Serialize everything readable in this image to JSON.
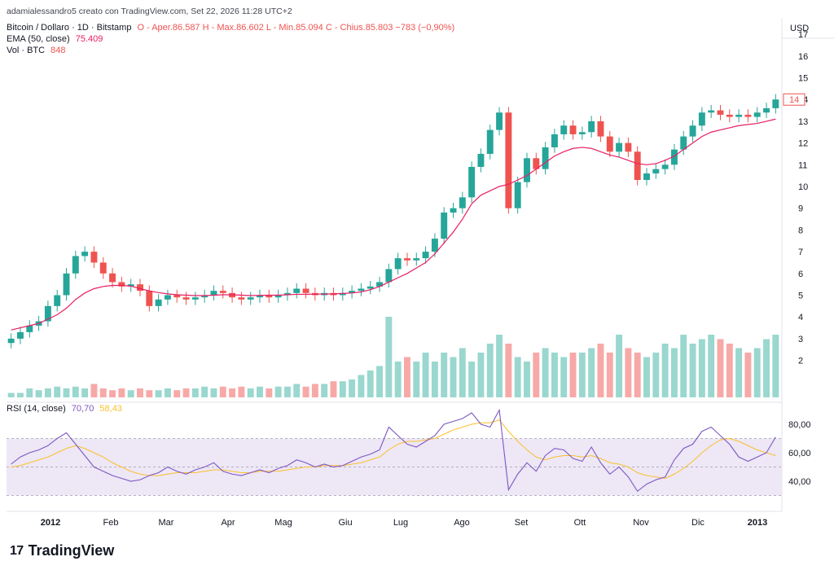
{
  "header": {
    "attribution": "adamialessandro5 creato con TradingView.com, Set 22, 2026 11:28 UTC+2",
    "symbol_line": "Bitcoin / Dollaro · 1D · Bitstamp",
    "ohlc": "O - Aper.86.587  H - Max.86.602  L - Min.85.094  C - Chius.85.803  −783 (−0,90%)",
    "ema_label": "EMA (50, close)",
    "ema_value": "75.409",
    "vol_label": "Vol · BTC",
    "vol_value": "848"
  },
  "rsi_header": {
    "label": "RSI (14, close)",
    "value": "70,70",
    "ma_value": "58,43"
  },
  "brand": {
    "name": "TradingView",
    "logo_text": "17"
  },
  "colors": {
    "up": "#26a69a",
    "down": "#ef5350",
    "ema": "#e91e63",
    "vol_up": "#9ad7cf",
    "vol_down": "#f7a9a7",
    "rsi": "#7e57c2",
    "rsi_ma": "#fbc02d",
    "rsi_band": "#ede7f6"
  },
  "chart_data": [
    {
      "type": "candlestick",
      "title": "Bitcoin / Dollaro · 1D · Bitstamp",
      "currency": "USD",
      "y_ticks": [
        2,
        3,
        4,
        5,
        6,
        7,
        8,
        9,
        10,
        11,
        12,
        13,
        14,
        15,
        16,
        17
      ],
      "last_price_label": "14",
      "x_ticks": [
        "2012",
        "Feb",
        "Mar",
        "Apr",
        "Mag",
        "Giu",
        "Lug",
        "Ago",
        "Set",
        "Ott",
        "Nov",
        "Dic",
        "2013"
      ],
      "close": [
        3.0,
        3.3,
        3.6,
        3.8,
        4.5,
        5.0,
        6.0,
        6.8,
        7.0,
        6.5,
        6.0,
        5.6,
        5.4,
        5.5,
        5.2,
        4.5,
        4.8,
        5.0,
        4.9,
        4.8,
        4.9,
        5.0,
        5.2,
        5.1,
        4.9,
        4.8,
        4.9,
        5.0,
        4.9,
        5.0,
        5.1,
        5.3,
        5.1,
        5.0,
        5.1,
        5.0,
        5.1,
        5.2,
        5.3,
        5.4,
        5.6,
        6.2,
        6.7,
        6.6,
        6.7,
        7.0,
        7.6,
        8.8,
        9.0,
        9.5,
        10.9,
        11.5,
        12.6,
        13.4,
        9.0,
        10.2,
        11.3,
        10.8,
        11.8,
        12.4,
        12.8,
        12.4,
        12.5,
        13.0,
        12.3,
        11.6,
        12.0,
        11.6,
        10.3,
        10.6,
        10.8,
        11.0,
        11.7,
        12.3,
        12.8,
        13.4,
        13.5,
        13.3,
        13.2,
        13.3,
        13.2,
        13.4,
        13.6,
        14.0
      ],
      "ema": [
        3.4,
        3.5,
        3.6,
        3.7,
        3.9,
        4.1,
        4.4,
        4.8,
        5.1,
        5.3,
        5.4,
        5.45,
        5.45,
        5.42,
        5.3,
        5.2,
        5.12,
        5.06,
        5.02,
        5.0,
        4.98,
        4.98,
        5.0,
        5.02,
        5.02,
        5.0,
        4.98,
        4.99,
        5.0,
        5.0,
        5.02,
        5.04,
        5.04,
        5.05,
        5.05,
        5.06,
        5.08,
        5.1,
        5.15,
        5.25,
        5.4,
        5.6,
        5.8,
        6.0,
        6.25,
        6.5,
        6.9,
        7.4,
        7.9,
        8.5,
        9.2,
        9.6,
        9.8,
        10.0,
        10.1,
        10.3,
        10.5,
        10.8,
        11.1,
        11.4,
        11.6,
        11.75,
        11.8,
        11.75,
        11.6,
        11.45,
        11.35,
        11.2,
        11.05,
        11.0,
        11.05,
        11.2,
        11.4,
        11.7,
        12.0,
        12.3,
        12.5,
        12.6,
        12.7,
        12.8,
        12.85,
        12.9,
        13.0,
        13.1
      ],
      "volume": [
        0.05,
        0.05,
        0.1,
        0.08,
        0.1,
        0.12,
        0.1,
        0.12,
        0.1,
        0.15,
        0.1,
        0.08,
        0.1,
        0.08,
        0.1,
        0.08,
        0.08,
        0.1,
        0.08,
        0.1,
        0.1,
        0.12,
        0.1,
        0.12,
        0.1,
        0.12,
        0.1,
        0.12,
        0.1,
        0.12,
        0.12,
        0.15,
        0.12,
        0.15,
        0.15,
        0.18,
        0.18,
        0.2,
        0.25,
        0.3,
        0.35,
        0.9,
        0.4,
        0.45,
        0.4,
        0.5,
        0.4,
        0.5,
        0.45,
        0.55,
        0.4,
        0.5,
        0.6,
        0.7,
        0.6,
        0.45,
        0.4,
        0.5,
        0.55,
        0.5,
        0.45,
        0.5,
        0.5,
        0.55,
        0.6,
        0.5,
        0.7,
        0.55,
        0.5,
        0.45,
        0.5,
        0.6,
        0.55,
        0.7,
        0.6,
        0.65,
        0.7,
        0.65,
        0.6,
        0.55,
        0.5,
        0.55,
        0.65,
        0.7
      ]
    },
    {
      "type": "line",
      "title": "RSI (14, close)",
      "y_ticks": [
        "80,00",
        "60,00",
        "40,00"
      ],
      "band": [
        30,
        70
      ],
      "rsi": [
        52,
        57,
        60,
        62,
        65,
        70,
        74,
        66,
        58,
        50,
        47,
        44,
        42,
        40,
        41,
        44,
        46,
        50,
        47,
        45,
        48,
        50,
        53,
        47,
        45,
        44,
        46,
        48,
        46,
        49,
        51,
        55,
        53,
        50,
        52,
        50,
        51,
        54,
        57,
        59,
        62,
        78,
        72,
        66,
        64,
        68,
        72,
        80,
        82,
        84,
        88,
        80,
        78,
        90,
        34,
        45,
        53,
        47,
        58,
        63,
        62,
        56,
        54,
        64,
        53,
        45,
        50,
        43,
        33,
        38,
        41,
        43,
        55,
        63,
        66,
        75,
        78,
        72,
        66,
        57,
        54,
        57,
        60,
        71
      ],
      "rsi_ma": [
        50,
        51,
        53,
        55,
        57,
        60,
        63,
        65,
        63,
        60,
        57,
        53,
        50,
        47,
        45,
        44,
        44,
        45,
        46,
        46,
        46,
        47,
        48,
        48,
        47,
        46,
        46,
        47,
        47,
        47,
        48,
        49,
        50,
        50,
        51,
        51,
        51,
        52,
        53,
        55,
        57,
        62,
        66,
        68,
        68,
        69,
        70,
        73,
        76,
        78,
        80,
        81,
        81,
        83,
        75,
        68,
        62,
        57,
        55,
        57,
        58,
        58,
        57,
        58,
        56,
        53,
        52,
        50,
        46,
        44,
        43,
        42,
        45,
        49,
        54,
        60,
        65,
        69,
        70,
        68,
        65,
        62,
        60,
        58
      ]
    }
  ]
}
